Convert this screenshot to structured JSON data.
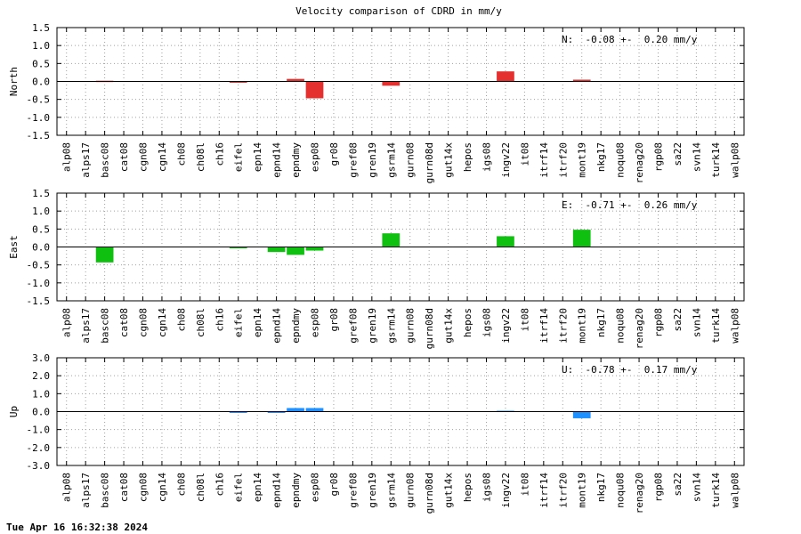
{
  "title": "Velocity comparison of CDRD in mm/y",
  "footer": "Tue Apr 16 16:32:38 2024",
  "chart_data": [
    {
      "type": "bar",
      "name": "north-panel",
      "ylabel": "North",
      "ylim": [
        -1.5,
        1.5
      ],
      "yticks": [
        1.5,
        1.0,
        0.5,
        0.0,
        -0.5,
        -1.0,
        -1.5
      ],
      "ytick_labels": [
        "1.5",
        "1.0",
        "0.5",
        "0.0",
        "-0.5",
        "-1.0",
        "-1.5"
      ],
      "summary": "N:  -0.08 +-  0.20 mm/y",
      "color": "#e53030",
      "grid": true,
      "categories": [
        "alp08",
        "alps17",
        "basc08",
        "cat08",
        "cgn08",
        "cgn14",
        "ch08",
        "ch08l",
        "ch16",
        "eifel",
        "epn14",
        "epnd14",
        "epndmy",
        "esp08",
        "gr08",
        "gref08",
        "gren19",
        "gsrm14",
        "gurn08",
        "gurn08d",
        "gut14x",
        "hepos",
        "igs08",
        "ingv22",
        "it08",
        "itrf14",
        "itrf20",
        "mont19",
        "nkg17",
        "noqu08",
        "renag20",
        "rgp08",
        "sa22",
        "svn14",
        "turk14",
        "walp08"
      ],
      "values": [
        0,
        0,
        0.02,
        0,
        0,
        0,
        0,
        0,
        0,
        -0.02,
        0,
        0,
        0.07,
        -0.47,
        0,
        0,
        0,
        -0.12,
        0,
        0,
        0,
        0,
        0,
        0.28,
        0,
        0,
        0,
        0.05,
        0,
        0,
        0,
        0,
        0,
        0,
        0,
        0
      ]
    },
    {
      "type": "bar",
      "name": "east-panel",
      "ylabel": "East",
      "ylim": [
        -1.5,
        1.5
      ],
      "yticks": [
        1.5,
        1.0,
        0.5,
        0.0,
        -0.5,
        -1.0,
        -1.5
      ],
      "ytick_labels": [
        "1.5",
        "1.0",
        "0.5",
        "0.0",
        "-0.5",
        "-1.0",
        "-1.5"
      ],
      "summary": "E:  -0.71 +-  0.26 mm/y",
      "color": "#10c010",
      "grid": true,
      "categories": [
        "alp08",
        "alps17",
        "basc08",
        "cat08",
        "cgn08",
        "cgn14",
        "ch08",
        "ch08l",
        "ch16",
        "eifel",
        "epn14",
        "epnd14",
        "epndmy",
        "esp08",
        "gr08",
        "gref08",
        "gren19",
        "gsrm14",
        "gurn08",
        "gurn08d",
        "gut14x",
        "hepos",
        "igs08",
        "ingv22",
        "it08",
        "itrf14",
        "itrf20",
        "mont19",
        "nkg17",
        "noqu08",
        "renag20",
        "rgp08",
        "sa22",
        "svn14",
        "turk14",
        "walp08"
      ],
      "values": [
        0,
        0,
        -0.43,
        0,
        0,
        0,
        0,
        0,
        0,
        -0.03,
        0,
        -0.14,
        -0.22,
        -0.1,
        0,
        0,
        0,
        0.38,
        0,
        0,
        0,
        0,
        0,
        0.3,
        0,
        0,
        0,
        0.48,
        0,
        0,
        0,
        0,
        0,
        0,
        0,
        0
      ]
    },
    {
      "type": "bar",
      "name": "up-panel",
      "ylabel": "Up",
      "ylim": [
        -3.0,
        3.0
      ],
      "yticks": [
        3.0,
        2.0,
        1.0,
        0.0,
        -1.0,
        -2.0,
        -3.0
      ],
      "ytick_labels": [
        "3.0",
        "2.0",
        "1.0",
        "0.0",
        "-1.0",
        "-2.0",
        "-3.0"
      ],
      "summary": "U:  -0.78 +-  0.17 mm/y",
      "color": "#1e90ff",
      "grid": true,
      "categories": [
        "alp08",
        "alps17",
        "basc08",
        "cat08",
        "cgn08",
        "cgn14",
        "ch08",
        "ch08l",
        "ch16",
        "eifel",
        "epn14",
        "epnd14",
        "epndmy",
        "esp08",
        "gr08",
        "gref08",
        "gren19",
        "gsrm14",
        "gurn08",
        "gurn08d",
        "gut14x",
        "hepos",
        "igs08",
        "ingv22",
        "it08",
        "itrf14",
        "itrf20",
        "mont19",
        "nkg17",
        "noqu08",
        "renag20",
        "rgp08",
        "sa22",
        "svn14",
        "turk14",
        "walp08"
      ],
      "values": [
        0,
        0,
        0,
        0,
        0,
        0,
        0,
        0,
        0,
        -0.07,
        0,
        -0.05,
        0.2,
        0.2,
        0,
        0,
        0,
        0,
        0,
        0,
        0,
        0,
        0,
        0.05,
        0,
        0,
        0,
        -0.37,
        0,
        0,
        0,
        0,
        0,
        0,
        0,
        0
      ]
    }
  ]
}
